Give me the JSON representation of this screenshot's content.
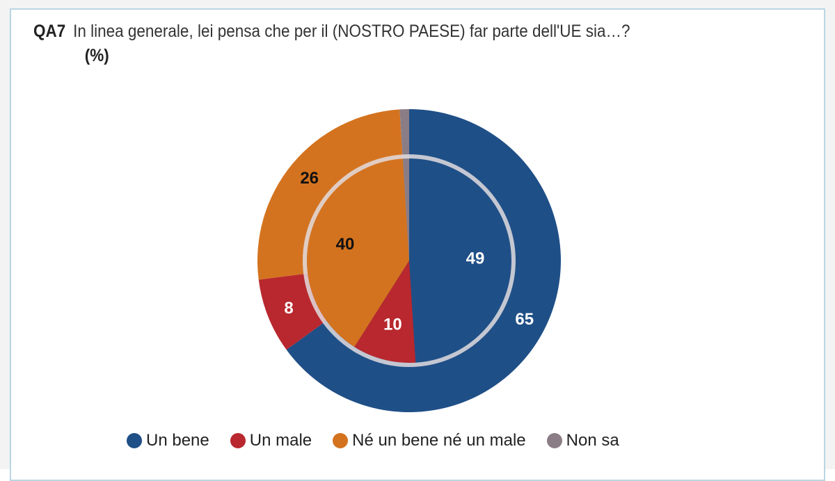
{
  "header": {
    "code": "QA7",
    "question": "In linea generale, lei pensa che per il (NOSTRO PAESE) far parte dell'UE sia…?",
    "unit": "(%)"
  },
  "chart_data": {
    "type": "pie",
    "subtype": "double-ring",
    "categories": [
      "Un bene",
      "Un male",
      "Né un bene né un male",
      "Non sa"
    ],
    "colors": [
      "#1f4f87",
      "#b8282e",
      "#d4731f",
      "#8b7d86"
    ],
    "series": [
      {
        "values": [
          65,
          8,
          26,
          1
        ],
        "labels": [
          "65",
          "8",
          "26",
          ""
        ]
      },
      {
        "values": [
          49,
          10,
          40,
          1
        ],
        "labels": [
          "49",
          "10",
          "40",
          ""
        ]
      }
    ],
    "legend_position": "bottom"
  }
}
